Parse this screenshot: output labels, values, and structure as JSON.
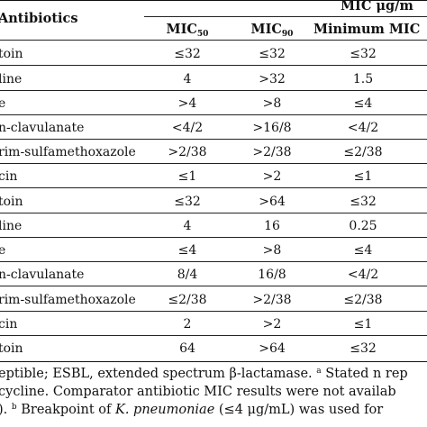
{
  "table": {
    "header": {
      "antibiotics": "Antibiotics",
      "mic_group": "MIC μg/m",
      "mic50_base": "MIC",
      "mic50_sub": "50",
      "mic90_base": "MIC",
      "mic90_sub": "90",
      "minimum": "Minimum MIC"
    },
    "rows": [
      {
        "antibiotic": "toin",
        "mic50": "≤32",
        "mic90": "≤32",
        "min": "≤32"
      },
      {
        "antibiotic": "line",
        "mic50": "4",
        "mic90": ">32",
        "min": "1.5"
      },
      {
        "antibiotic": "e",
        "mic50": ">4",
        "mic90": ">8",
        "min": "≤4"
      },
      {
        "antibiotic": "n-clavulanate",
        "mic50": "<4/2",
        "mic90": ">16/8",
        "min": "<4/2"
      },
      {
        "antibiotic": "rim-sulfamethoxazole",
        "mic50": ">2/38",
        "mic90": ">2/38",
        "min": "≤2/38"
      },
      {
        "antibiotic": "cin",
        "mic50": "≤1",
        "mic90": ">2",
        "min": "≤1"
      },
      {
        "antibiotic": "toin",
        "mic50": "≤32",
        "mic90": ">64",
        "min": "≤32"
      },
      {
        "antibiotic": "line",
        "mic50": "4",
        "mic90": "16",
        "min": "0.25"
      },
      {
        "antibiotic": "e",
        "mic50": "≤4",
        "mic90": ">8",
        "min": "≤4"
      },
      {
        "antibiotic": "n-clavulanate",
        "mic50": "8/4",
        "mic90": "16/8",
        "min": "<4/2"
      },
      {
        "antibiotic": "rim-sulfamethoxazole",
        "mic50": "≤2/38",
        "mic90": ">2/38",
        "min": "≤2/38"
      },
      {
        "antibiotic": "cin",
        "mic50": "2",
        "mic90": ">2",
        "min": "≤1"
      },
      {
        "antibiotic": "toin",
        "mic50": "64",
        "mic90": ">64",
        "min": "≤32"
      }
    ]
  },
  "footnotes": {
    "line1_a": "eptible; ESBL, extended spectrum β-lactamase. ",
    "line1_sup": "a",
    "line1_b": " Stated n rep",
    "line2": "cycline.  Comparator antibiotic MIC results were not availab",
    "line3_sup": "b",
    "line3_a": "). ",
    "line3_b": " Breakpoint of ",
    "line3_italic": "K. pneumoniae",
    "line3_c": " (≤4 μg/mL) was used for"
  }
}
